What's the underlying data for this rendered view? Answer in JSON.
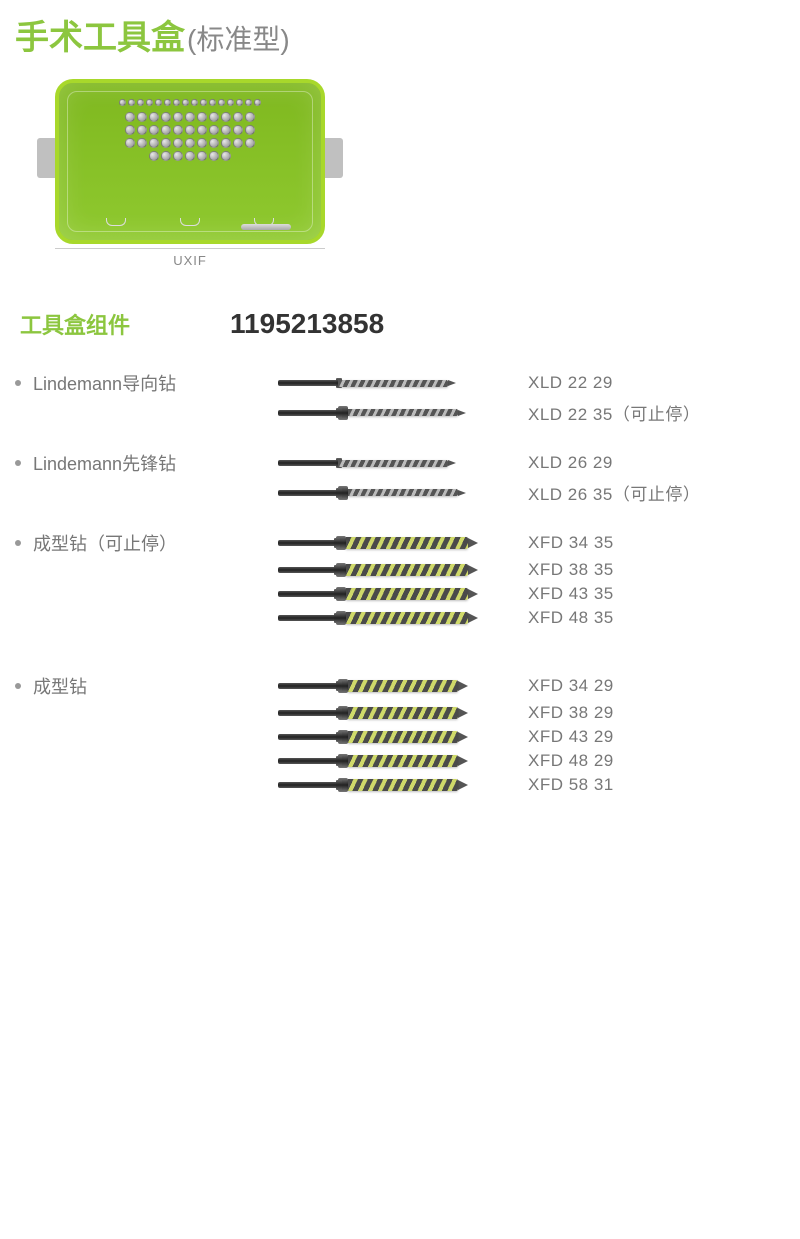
{
  "colors": {
    "accent": "#8cc63f",
    "text_muted": "#777777",
    "code_dark": "#333333"
  },
  "title": "手术工具盒",
  "subtitle": "(标准型)",
  "kit_label": "UXIF",
  "section_title": "工具盒组件",
  "code_number": "1195213858",
  "groups": [
    {
      "label": "Lindemann导向钻",
      "drill_style": "thin",
      "body_width": 110,
      "items": [
        {
          "code": "XLD 22 29",
          "note": ""
        },
        {
          "code": "XLD 22 35",
          "note": "（可止停）"
        }
      ]
    },
    {
      "label": "Lindemann先锋钻",
      "drill_style": "thin",
      "body_width": 110,
      "items": [
        {
          "code": "XLD 26 29",
          "note": ""
        },
        {
          "code": "XLD 26 35",
          "note": "（可止停）"
        }
      ]
    },
    {
      "label": "成型钻（可止停）",
      "drill_style": "thick",
      "body_width": 125,
      "items": [
        {
          "code": "XFD 34 35",
          "note": ""
        },
        {
          "code": "XFD 38 35",
          "note": ""
        },
        {
          "code": "XFD 43 35",
          "note": ""
        },
        {
          "code": "XFD 48 35",
          "note": ""
        }
      ]
    },
    {
      "label": "成型钻",
      "drill_style": "thick",
      "body_width": 110,
      "big_gap": true,
      "items": [
        {
          "code": "XFD 34 29",
          "note": ""
        },
        {
          "code": "XFD 38 29",
          "note": ""
        },
        {
          "code": "XFD 43 29",
          "note": ""
        },
        {
          "code": "XFD 48 29",
          "note": ""
        },
        {
          "code": "XFD 58 31",
          "note": ""
        }
      ]
    }
  ]
}
